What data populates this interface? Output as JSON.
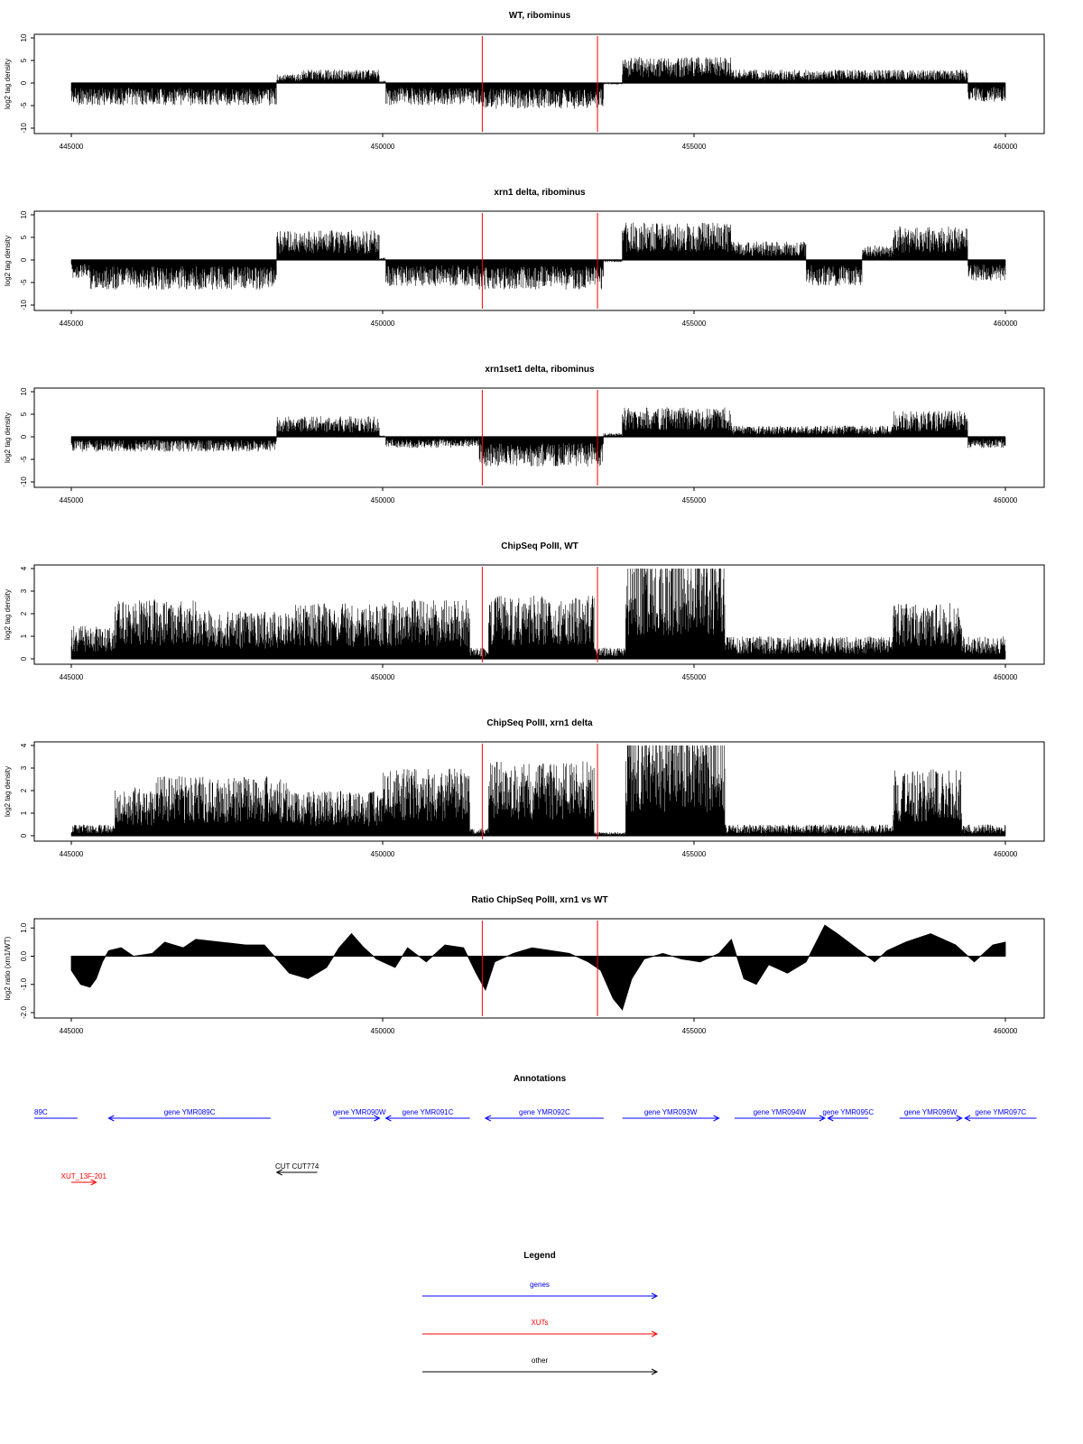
{
  "colors": {
    "bars": "#000000",
    "marker": "#ff0000",
    "genes": "#0000ff",
    "xuts": "#ff0000",
    "other": "#000000",
    "frame": "#000000"
  },
  "xaxis": {
    "ticks": [
      445000,
      450000,
      455000,
      460000
    ],
    "tick_labels": [
      "445000",
      "450000",
      "455000",
      "460000"
    ],
    "range": [
      445000,
      460000
    ]
  },
  "markers": {
    "x": [
      451600,
      453450
    ]
  },
  "chart_data": [
    {
      "type": "bar",
      "title": "WT, ribominus",
      "ylabel": "log2 tag density",
      "ylim": [
        -10,
        10
      ],
      "yticks": [
        -10,
        -5,
        0,
        5,
        10
      ],
      "segments": [
        {
          "start": 445000,
          "end": 448300,
          "level": -3.0
        },
        {
          "start": 448300,
          "end": 448700,
          "level": 1.2
        },
        {
          "start": 448700,
          "end": 449950,
          "level": 1.8
        },
        {
          "start": 449950,
          "end": 450050,
          "level": 0.3
        },
        {
          "start": 450050,
          "end": 451550,
          "level": -3.0
        },
        {
          "start": 451550,
          "end": 453550,
          "level": -3.5
        },
        {
          "start": 453550,
          "end": 453850,
          "level": -0.2
        },
        {
          "start": 453850,
          "end": 455600,
          "level": 3.5
        },
        {
          "start": 455600,
          "end": 459400,
          "level": 1.8
        },
        {
          "start": 459400,
          "end": 460000,
          "level": -2.5
        }
      ]
    },
    {
      "type": "bar",
      "title": "xrn1 delta, ribominus",
      "ylabel": "log2 tag density",
      "ylim": [
        -10,
        10
      ],
      "yticks": [
        -10,
        -5,
        0,
        5,
        10
      ],
      "segments": [
        {
          "start": 445000,
          "end": 445300,
          "level": -2.5
        },
        {
          "start": 445300,
          "end": 448300,
          "level": -4.0
        },
        {
          "start": 448300,
          "end": 449950,
          "level": 4.0
        },
        {
          "start": 449950,
          "end": 450050,
          "level": 0.3
        },
        {
          "start": 450050,
          "end": 451550,
          "level": -3.5
        },
        {
          "start": 451550,
          "end": 453550,
          "level": -4.0
        },
        {
          "start": 453550,
          "end": 453850,
          "level": -0.3
        },
        {
          "start": 453850,
          "end": 455600,
          "level": 5.0
        },
        {
          "start": 455600,
          "end": 456800,
          "level": 2.5
        },
        {
          "start": 456800,
          "end": 457700,
          "level": -3.5
        },
        {
          "start": 457700,
          "end": 458200,
          "level": 2.0
        },
        {
          "start": 458200,
          "end": 459400,
          "level": 4.5
        },
        {
          "start": 459400,
          "end": 460000,
          "level": -2.8
        }
      ]
    },
    {
      "type": "bar",
      "title": "xrn1set1 delta, ribominus",
      "ylabel": "log2 tag density",
      "ylim": [
        -10,
        10
      ],
      "yticks": [
        -10,
        -5,
        0,
        5,
        10
      ],
      "segments": [
        {
          "start": 445000,
          "end": 448300,
          "level": -2.0
        },
        {
          "start": 448300,
          "end": 449950,
          "level": 2.8
        },
        {
          "start": 449950,
          "end": 450050,
          "level": 0.2
        },
        {
          "start": 450050,
          "end": 451550,
          "level": -1.5
        },
        {
          "start": 451550,
          "end": 453550,
          "level": -4.0
        },
        {
          "start": 453550,
          "end": 453850,
          "level": 0.5
        },
        {
          "start": 453850,
          "end": 455600,
          "level": 4.0
        },
        {
          "start": 455600,
          "end": 458200,
          "level": 1.5
        },
        {
          "start": 458200,
          "end": 459400,
          "level": 3.5
        },
        {
          "start": 459400,
          "end": 460000,
          "level": -1.5
        }
      ]
    },
    {
      "type": "bar",
      "title": "ChipSeq PolII, WT",
      "ylabel": "log2 tag density",
      "ylim": [
        0,
        4
      ],
      "yticks": [
        0,
        1,
        2,
        3,
        4
      ],
      "segments": [
        {
          "start": 445000,
          "end": 445700,
          "level": 0.9
        },
        {
          "start": 445700,
          "end": 447000,
          "level": 1.6
        },
        {
          "start": 447000,
          "end": 448500,
          "level": 1.3
        },
        {
          "start": 448500,
          "end": 450000,
          "level": 1.5
        },
        {
          "start": 450000,
          "end": 451400,
          "level": 1.6
        },
        {
          "start": 451400,
          "end": 451700,
          "level": 0.3
        },
        {
          "start": 451700,
          "end": 453400,
          "level": 1.7
        },
        {
          "start": 453400,
          "end": 453900,
          "level": 0.3
        },
        {
          "start": 453900,
          "end": 455500,
          "level": 3.0
        },
        {
          "start": 455500,
          "end": 458200,
          "level": 0.6
        },
        {
          "start": 458200,
          "end": 459300,
          "level": 1.5
        },
        {
          "start": 459300,
          "end": 460000,
          "level": 0.6
        }
      ]
    },
    {
      "type": "bar",
      "title": "ChipSeq PolII, xrn1 delta",
      "ylabel": "log2 tag density",
      "ylim": [
        0,
        4
      ],
      "yticks": [
        0,
        1,
        2,
        3,
        4
      ],
      "segments": [
        {
          "start": 445000,
          "end": 445700,
          "level": 0.3
        },
        {
          "start": 445700,
          "end": 446300,
          "level": 1.3
        },
        {
          "start": 446300,
          "end": 448500,
          "level": 1.6
        },
        {
          "start": 448500,
          "end": 450000,
          "level": 1.2
        },
        {
          "start": 450000,
          "end": 451400,
          "level": 1.8
        },
        {
          "start": 451400,
          "end": 451700,
          "level": 0.2
        },
        {
          "start": 451700,
          "end": 453400,
          "level": 2.0
        },
        {
          "start": 453400,
          "end": 453900,
          "level": 0.1
        },
        {
          "start": 453900,
          "end": 455500,
          "level": 3.0
        },
        {
          "start": 455500,
          "end": 458200,
          "level": 0.3
        },
        {
          "start": 458200,
          "end": 459300,
          "level": 1.8
        },
        {
          "start": 459300,
          "end": 460000,
          "level": 0.3
        }
      ]
    },
    {
      "type": "area",
      "title": "Ratio ChipSeq PolII, xrn1 vs WT",
      "ylabel": "log2 ratio (xrn1/WT)",
      "ylim": [
        -2,
        1.2
      ],
      "yticks": [
        -2.0,
        -1.0,
        0.0,
        1.0
      ],
      "ytick_labels": [
        "-2.0",
        "-1.0",
        "0.0",
        "1.0"
      ],
      "points": [
        [
          445000,
          -0.5
        ],
        [
          445150,
          -1.0
        ],
        [
          445300,
          -1.1
        ],
        [
          445400,
          -0.8
        ],
        [
          445500,
          -0.2
        ],
        [
          445600,
          0.2
        ],
        [
          445800,
          0.3
        ],
        [
          446000,
          0.0
        ],
        [
          446300,
          0.1
        ],
        [
          446500,
          0.5
        ],
        [
          446800,
          0.3
        ],
        [
          447000,
          0.6
        ],
        [
          447400,
          0.5
        ],
        [
          447800,
          0.4
        ],
        [
          448100,
          0.4
        ],
        [
          448300,
          -0.1
        ],
        [
          448500,
          -0.6
        ],
        [
          448800,
          -0.8
        ],
        [
          449100,
          -0.4
        ],
        [
          449300,
          0.3
        ],
        [
          449500,
          0.8
        ],
        [
          449700,
          0.3
        ],
        [
          449900,
          -0.1
        ],
        [
          450200,
          -0.4
        ],
        [
          450400,
          0.3
        ],
        [
          450700,
          -0.2
        ],
        [
          451000,
          0.4
        ],
        [
          451300,
          0.3
        ],
        [
          451500,
          -0.6
        ],
        [
          451650,
          -1.2
        ],
        [
          451800,
          -0.2
        ],
        [
          452100,
          0.1
        ],
        [
          452400,
          0.3
        ],
        [
          452700,
          0.2
        ],
        [
          453000,
          0.1
        ],
        [
          453300,
          -0.2
        ],
        [
          453500,
          -0.5
        ],
        [
          453700,
          -1.5
        ],
        [
          453850,
          -1.9
        ],
        [
          454000,
          -0.8
        ],
        [
          454200,
          -0.1
        ],
        [
          454500,
          0.1
        ],
        [
          454800,
          -0.1
        ],
        [
          455100,
          -0.2
        ],
        [
          455400,
          0.1
        ],
        [
          455600,
          0.6
        ],
        [
          455800,
          -0.8
        ],
        [
          456000,
          -1.0
        ],
        [
          456200,
          -0.3
        ],
        [
          456500,
          -0.6
        ],
        [
          456800,
          -0.2
        ],
        [
          457100,
          1.1
        ],
        [
          457300,
          0.8
        ],
        [
          457600,
          0.3
        ],
        [
          457900,
          -0.2
        ],
        [
          458100,
          0.2
        ],
        [
          458400,
          0.5
        ],
        [
          458800,
          0.8
        ],
        [
          459200,
          0.4
        ],
        [
          459500,
          -0.2
        ],
        [
          459800,
          0.4
        ],
        [
          460000,
          0.5
        ]
      ]
    }
  ],
  "annotations": {
    "title": "Annotations",
    "features": [
      {
        "label": "89C",
        "kind": "gene",
        "dir": "none",
        "start": 444150,
        "end": 445100,
        "lane": 0
      },
      {
        "label": "gene YMR089C",
        "kind": "gene",
        "dir": "left",
        "start": 445600,
        "end": 448200,
        "lane": 0
      },
      {
        "label": "gene YMR090W",
        "kind": "gene",
        "dir": "right",
        "start": 449300,
        "end": 449950,
        "lane": 0
      },
      {
        "label": "gene YMR091C",
        "kind": "gene",
        "dir": "left",
        "start": 450050,
        "end": 451400,
        "lane": 0
      },
      {
        "label": "gene YMR092C",
        "kind": "gene",
        "dir": "left",
        "start": 451650,
        "end": 453550,
        "lane": 0
      },
      {
        "label": "gene YMR093W",
        "kind": "gene",
        "dir": "right",
        "start": 453850,
        "end": 455400,
        "lane": 0
      },
      {
        "label": "gene YMR094W",
        "kind": "gene",
        "dir": "right",
        "start": 455650,
        "end": 457100,
        "lane": 0
      },
      {
        "label": "gene YMR095C",
        "kind": "gene",
        "dir": "left",
        "start": 457150,
        "end": 457800,
        "lane": 0
      },
      {
        "label": "gene YMR096W",
        "kind": "gene",
        "dir": "right",
        "start": 458300,
        "end": 459300,
        "lane": 0
      },
      {
        "label": "gene YMR097C",
        "kind": "gene",
        "dir": "left",
        "start": 459350,
        "end": 460500,
        "lane": 0
      },
      {
        "label": "CUT CUT774",
        "kind": "other",
        "dir": "left",
        "start": 448300,
        "end": 448950,
        "lane": 1
      },
      {
        "label": "XUT_13F-201",
        "kind": "xut",
        "dir": "right",
        "start": 445000,
        "end": 445400,
        "lane": 2
      }
    ]
  },
  "legend": {
    "title": "Legend",
    "items": [
      {
        "label": "genes",
        "kind": "gene"
      },
      {
        "label": "XUTs",
        "kind": "xut"
      },
      {
        "label": "other",
        "kind": "other"
      }
    ]
  }
}
